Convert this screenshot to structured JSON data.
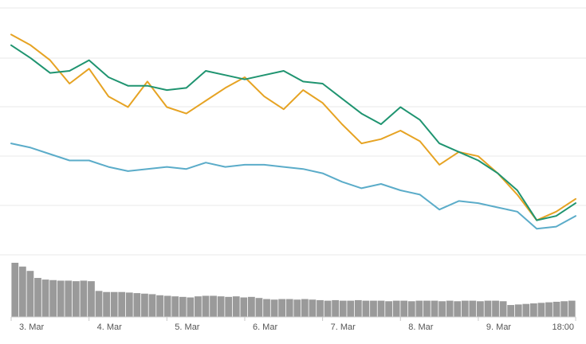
{
  "chart_data": {
    "type": "line",
    "title": "",
    "xlabel": "",
    "ylabel": "",
    "grid": true,
    "y_axis_labels_visible": false,
    "x_tick_labels": [
      "3. Mar",
      "4. Mar",
      "5. Mar",
      "6. Mar",
      "7. Mar",
      "8. Mar",
      "9. Mar",
      "18:00"
    ],
    "x": [
      0,
      0.25,
      0.5,
      0.75,
      1,
      1.25,
      1.5,
      1.75,
      2,
      2.25,
      2.5,
      2.75,
      3,
      3.25,
      3.5,
      3.75,
      4,
      4.25,
      4.5,
      4.75,
      5,
      5.25,
      5.5,
      5.75,
      6,
      6.25,
      6.5,
      6.75,
      7,
      7.25
    ],
    "ylim": [
      0,
      100
    ],
    "series": [
      {
        "color": "#e6a323",
        "values": [
          95,
          90,
          83,
          72,
          79,
          66,
          61,
          73,
          61,
          58,
          64,
          70,
          75,
          66,
          60,
          69,
          63,
          53,
          44,
          46,
          50,
          45,
          34,
          40,
          38,
          30,
          20,
          8,
          12,
          18
        ]
      },
      {
        "color": "#1f9470",
        "values": [
          90,
          84,
          77,
          78,
          83,
          75,
          71,
          71,
          69,
          70,
          78,
          76,
          74,
          76,
          78,
          73,
          72,
          65,
          58,
          53,
          61,
          55,
          44,
          40,
          36,
          30,
          22,
          8,
          10,
          16
        ]
      },
      {
        "color": "#5bacc9",
        "values": [
          44,
          42,
          39,
          36,
          36,
          33,
          31,
          32,
          33,
          32,
          35,
          33,
          34,
          34,
          33,
          32,
          30,
          26,
          23,
          25,
          22,
          20,
          13,
          17,
          16,
          14,
          12,
          4,
          5,
          10
        ]
      }
    ],
    "volume": {
      "color": "#9a9a9a",
      "values": [
        100,
        93,
        85,
        72,
        69,
        68,
        67,
        67,
        66,
        67,
        66,
        48,
        46,
        46,
        46,
        45,
        44,
        43,
        42,
        40,
        39,
        38,
        37,
        36,
        38,
        39,
        39,
        38,
        37,
        38,
        36,
        37,
        35,
        33,
        32,
        33,
        33,
        32,
        33,
        32,
        31,
        30,
        31,
        30,
        30,
        31,
        30,
        30,
        30,
        29,
        30,
        30,
        29,
        30,
        30,
        30,
        29,
        30,
        29,
        30,
        30,
        29,
        30,
        30,
        29,
        22,
        23,
        24,
        25,
        26,
        27,
        28,
        29,
        30
      ]
    }
  }
}
